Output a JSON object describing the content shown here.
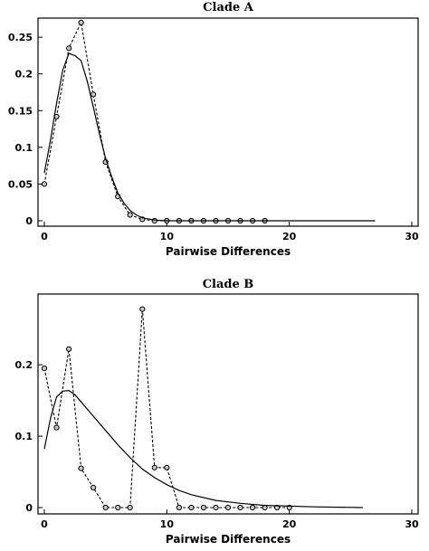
{
  "chart_data": [
    {
      "type": "line",
      "title": "Clade A",
      "xlabel": "Pairwise Differences",
      "ylabel": "",
      "xlim": [
        0,
        30
      ],
      "ylim": [
        0,
        0.28
      ],
      "xticks": [
        "0",
        "10",
        "20",
        "30"
      ],
      "yticks": [
        "0",
        "0.05",
        "0.1",
        "0.15",
        "0.2",
        "0.25"
      ],
      "legend": "none",
      "grid": false,
      "series": [
        {
          "style": "dashed-with-circles",
          "x": [
            0,
            1,
            2,
            3,
            4,
            5,
            6,
            7,
            8,
            9,
            10,
            11,
            12,
            13,
            14,
            15,
            16,
            17,
            18
          ],
          "y": [
            0.05,
            0.142,
            0.235,
            0.27,
            0.172,
            0.08,
            0.033,
            0.008,
            0.002,
            0,
            0,
            0,
            0,
            0,
            0,
            0,
            0,
            0,
            0
          ]
        },
        {
          "style": "solid",
          "x": [
            0,
            0.5,
            1,
            1.5,
            2,
            2.5,
            3,
            3.5,
            4,
            4.5,
            5,
            5.5,
            6,
            6.5,
            7,
            7.5,
            8,
            9,
            10,
            12,
            15,
            20,
            27
          ],
          "y": [
            0.065,
            0.11,
            0.16,
            0.205,
            0.228,
            0.225,
            0.218,
            0.19,
            0.155,
            0.118,
            0.085,
            0.06,
            0.038,
            0.024,
            0.014,
            0.008,
            0.004,
            0.001,
            0,
            0,
            0,
            0,
            0
          ]
        }
      ]
    },
    {
      "type": "line",
      "title": "Clade B",
      "xlabel": "Pairwise Differences",
      "ylabel": "",
      "xlim": [
        0,
        30
      ],
      "ylim": [
        0,
        0.29
      ],
      "xticks": [
        "0",
        "10",
        "20",
        "30"
      ],
      "yticks": [
        "0",
        "0.1",
        "0.2"
      ],
      "legend": "none",
      "grid": false,
      "series": [
        {
          "style": "dashed-with-circles",
          "x": [
            0,
            1,
            2,
            3,
            4,
            5,
            6,
            7,
            8,
            9,
            10,
            11,
            12,
            13,
            14,
            15,
            16,
            17,
            18,
            19,
            20
          ],
          "y": [
            0.195,
            0.112,
            0.222,
            0.055,
            0.028,
            0,
            0,
            0,
            0.278,
            0.056,
            0.056,
            0,
            0,
            0,
            0,
            0,
            0,
            0,
            0,
            0,
            0
          ]
        },
        {
          "style": "solid",
          "x": [
            0,
            0.5,
            1,
            1.5,
            2,
            2.5,
            3,
            4,
            5,
            6,
            7,
            8,
            9,
            10,
            11,
            12,
            14,
            16,
            18,
            20,
            22,
            26
          ],
          "y": [
            0.082,
            0.125,
            0.155,
            0.163,
            0.164,
            0.158,
            0.148,
            0.128,
            0.108,
            0.088,
            0.07,
            0.054,
            0.042,
            0.032,
            0.024,
            0.018,
            0.01,
            0.006,
            0.003,
            0.002,
            0.001,
            0
          ]
        }
      ]
    }
  ]
}
